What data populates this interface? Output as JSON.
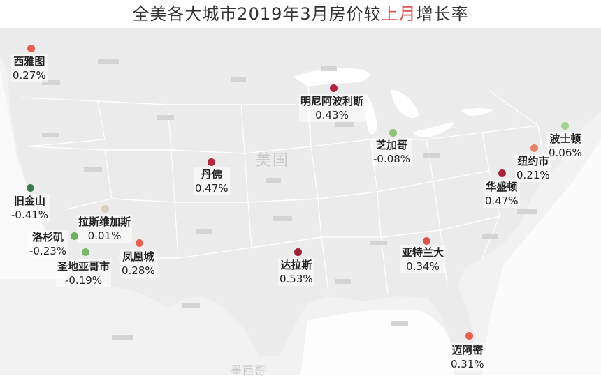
{
  "title": {
    "part1": "全美各大城市2019年3月房价较",
    "highlight": "上月",
    "part2": "增长率"
  },
  "country_labels": {
    "usa": "美国",
    "mexico": "墨西哥"
  },
  "colors": {
    "positive_high": "#b2263b",
    "positive_mid": "#d9534f",
    "positive_low": "#e8836a",
    "neutral": "#d8cfc0",
    "negative_low": "#8fc27a",
    "negative_high": "#3f7a4a",
    "map_bg": "#f2f2f2",
    "title_highlight": "#d9534f"
  },
  "cities": [
    {
      "id": "seattle",
      "name": "西雅图",
      "value": "0.27%",
      "dot_color": "#e8604f"
    },
    {
      "id": "minneapolis",
      "name": "明尼阿波利斯",
      "value": "0.43%",
      "dot_color": "#b2263b"
    },
    {
      "id": "chicago",
      "name": "芝加哥",
      "value": "-0.08%",
      "dot_color": "#8fc27a"
    },
    {
      "id": "boston",
      "name": "波士顿",
      "value": "0.06%",
      "dot_color": "#a6d08f"
    },
    {
      "id": "newyork",
      "name": "纽约市",
      "value": "0.21%",
      "dot_color": "#e8836a"
    },
    {
      "id": "washington",
      "name": "华盛顿",
      "value": "0.47%",
      "dot_color": "#a8243a"
    },
    {
      "id": "denver",
      "name": "丹佛",
      "value": "0.47%",
      "dot_color": "#b2263b"
    },
    {
      "id": "sanfrancisco",
      "name": "旧金山",
      "value": "-0.41%",
      "dot_color": "#3f7a4a"
    },
    {
      "id": "lasvegas",
      "name": "拉斯维加斯",
      "value": "0.01%",
      "dot_color": "#d8cfc0"
    },
    {
      "id": "losangeles",
      "name": "洛杉矶",
      "value": "-0.23%",
      "dot_color": "#6fae5e"
    },
    {
      "id": "sandiego",
      "name": "圣地亚哥市",
      "value": "-0.19%",
      "dot_color": "#7db86a"
    },
    {
      "id": "phoenix",
      "name": "凤凰城",
      "value": "0.28%",
      "dot_color": "#e8604f"
    },
    {
      "id": "dallas",
      "name": "达拉斯",
      "value": "0.53%",
      "dot_color": "#9b1f35"
    },
    {
      "id": "atlanta",
      "name": "亚特兰大",
      "value": "0.34%",
      "dot_color": "#d9534f"
    },
    {
      "id": "miami",
      "name": "迈阿密",
      "value": "0.31%",
      "dot_color": "#e8604f"
    }
  ]
}
